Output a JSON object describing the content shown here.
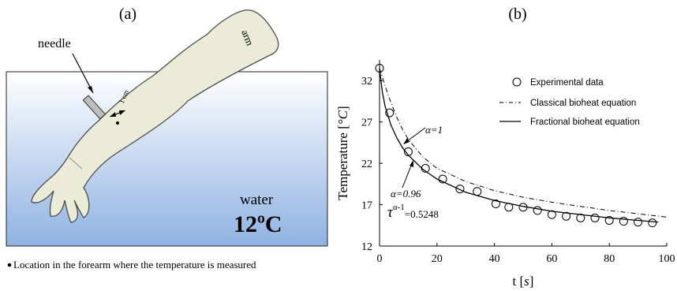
{
  "panel_a": {
    "label": "(a)",
    "needle_label": "needle",
    "arm_label": "arm",
    "distance_label": "1 cm",
    "water_label": "water",
    "temperature_label": "12ºC",
    "caption": "Location in the forearm where the temperature is measured",
    "colors": {
      "water_top": "#ffffff",
      "water_bottom": "#8fb2e2",
      "arm_fill": "#eaecd8",
      "arm_stroke": "#4d4d4d",
      "needle_fill": "#bdbdbd"
    }
  },
  "panel_b": {
    "label": "(b)",
    "legend": {
      "experimental": "Experimental data",
      "classical": "Classical bioheat equation",
      "fractional": "Fractional bioheat equation"
    },
    "annotations": {
      "alpha1": "α=1",
      "alpha096": "α=0.96",
      "tau_symbol": "τ",
      "tau_exp": "α-1",
      "tau_value": "=0.5248"
    }
  },
  "chart_data": {
    "type": "scatter",
    "xlabel": "t [s]",
    "ylabel": "Temperature [°C]",
    "xlim": [
      0,
      100
    ],
    "ylim": [
      12,
      34.5
    ],
    "xticks": [
      0,
      20,
      40,
      60,
      80,
      100
    ],
    "yticks": [
      12,
      17,
      22,
      27,
      32
    ],
    "grid": false,
    "legend_position": "top-right",
    "series": [
      {
        "name": "Experimental data",
        "kind": "markers",
        "x": [
          0,
          3.5,
          10,
          16,
          22,
          28,
          34,
          40.5,
          45,
          50,
          55,
          60,
          65,
          70,
          75,
          80,
          85,
          90,
          95
        ],
        "y": [
          33.5,
          28.1,
          23.4,
          21.4,
          20.1,
          18.9,
          18.6,
          17.1,
          16.7,
          16.7,
          16.3,
          15.8,
          15.6,
          15.4,
          15.4,
          15.1,
          15.0,
          14.9,
          14.8
        ]
      },
      {
        "name": "Classical bioheat equation",
        "kind": "line",
        "dash": "dash-dot",
        "x": [
          0,
          2,
          4,
          6,
          8,
          10,
          15,
          20,
          30,
          40,
          50,
          60,
          70,
          80,
          90,
          100
        ],
        "y": [
          33.5,
          31.3,
          29.3,
          27.6,
          26.1,
          24.9,
          22.8,
          21.4,
          19.8,
          18.7,
          17.9,
          17.3,
          16.8,
          16.3,
          15.9,
          15.5
        ]
      },
      {
        "name": "Fractional bioheat equation",
        "kind": "line",
        "dash": "solid",
        "x": [
          0,
          1,
          2,
          4,
          6,
          8,
          10,
          15,
          20,
          30,
          40,
          50,
          60,
          70,
          80,
          90,
          97
        ],
        "y": [
          33.5,
          30.6,
          28.8,
          26.6,
          25.1,
          23.9,
          23.0,
          21.3,
          20.1,
          18.5,
          17.5,
          16.8,
          16.2,
          15.8,
          15.4,
          15.1,
          14.9
        ]
      }
    ]
  }
}
